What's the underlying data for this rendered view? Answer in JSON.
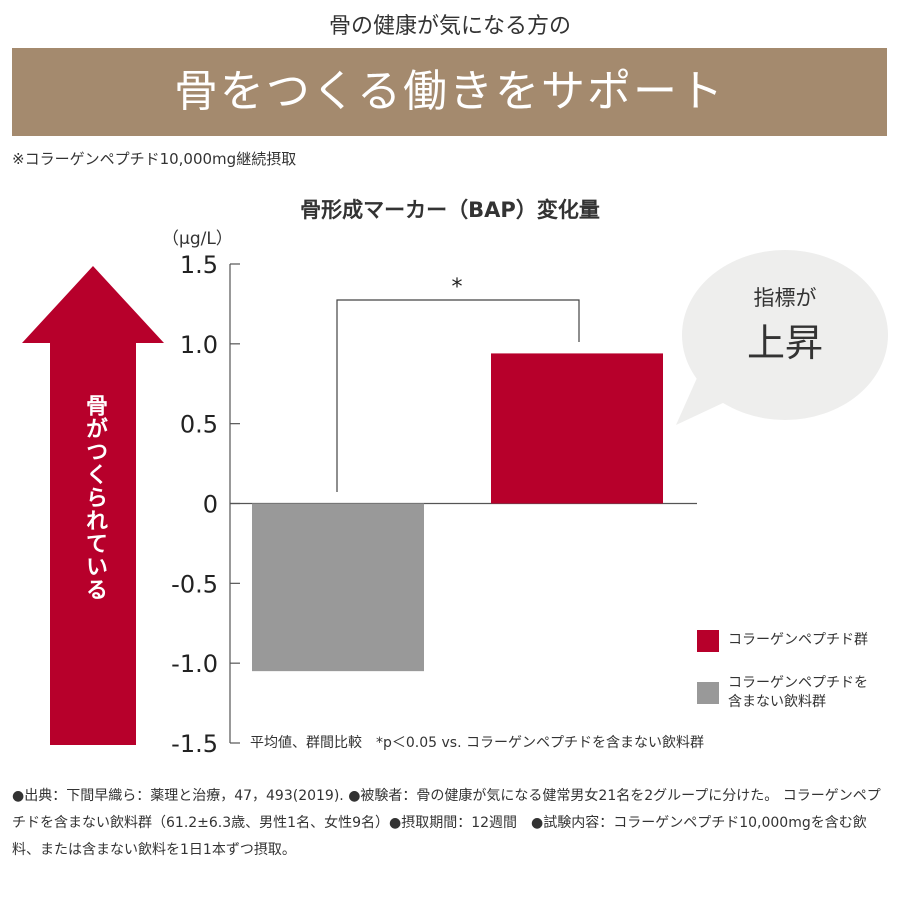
{
  "header": {
    "pre_title": "骨の健康が気になる方の",
    "title": "骨をつくる働きをサポート",
    "note": "※コラーゲンペプチド10,000mg継続摂取",
    "banner_color": "#a48a6e"
  },
  "chart_data": {
    "type": "bar",
    "title": "骨形成マーカー（BAP）変化量",
    "ylabel": "（μg/L）",
    "ylim": [
      -1.5,
      1.5
    ],
    "yticks": [
      "1.5",
      "1.0",
      "0.5",
      "0",
      "-0.5",
      "-1.0",
      "-1.5"
    ],
    "yticks_values": [
      1.5,
      1.0,
      0.5,
      0,
      -0.5,
      -1.0,
      -1.5
    ],
    "series": [
      {
        "name": "コラーゲンを含まない飲料群",
        "value": -1.05,
        "color": "#999999"
      },
      {
        "name": "コラーゲンペプチド群",
        "value": 0.94,
        "color": "#b7002b"
      }
    ],
    "significance": "*",
    "grid": false
  },
  "arrow": {
    "text": "骨がつくられている",
    "color": "#b7002b"
  },
  "bubble": {
    "line1": "指標が",
    "line2": "上昇",
    "color": "#eeeeed"
  },
  "legend": {
    "items": [
      {
        "label": "コラーゲンペプチド群",
        "color": "#b7002b"
      },
      {
        "label_line1": "コラーゲンペプチドを",
        "label_line2": "含まない飲料群",
        "color": "#999999"
      }
    ]
  },
  "footnote": "平均値、群間比較　*p＜0.05 vs. コラーゲンペプチドを含まない飲料群",
  "source": "●出典：下間早織ら：薬理と治療，47，493(2019).  ●被験者：骨の健康が気になる健常男女21名を2グループに分けた。 コラーゲンペプチドを含まない飲料群（61.2±6.3歳、男性1名、女性9名）●摂取期間：12週間　●試験内容：コラーゲンペプチド10,000mgを含む飲料、または含まない飲料を1日1本ずつ摂取。"
}
